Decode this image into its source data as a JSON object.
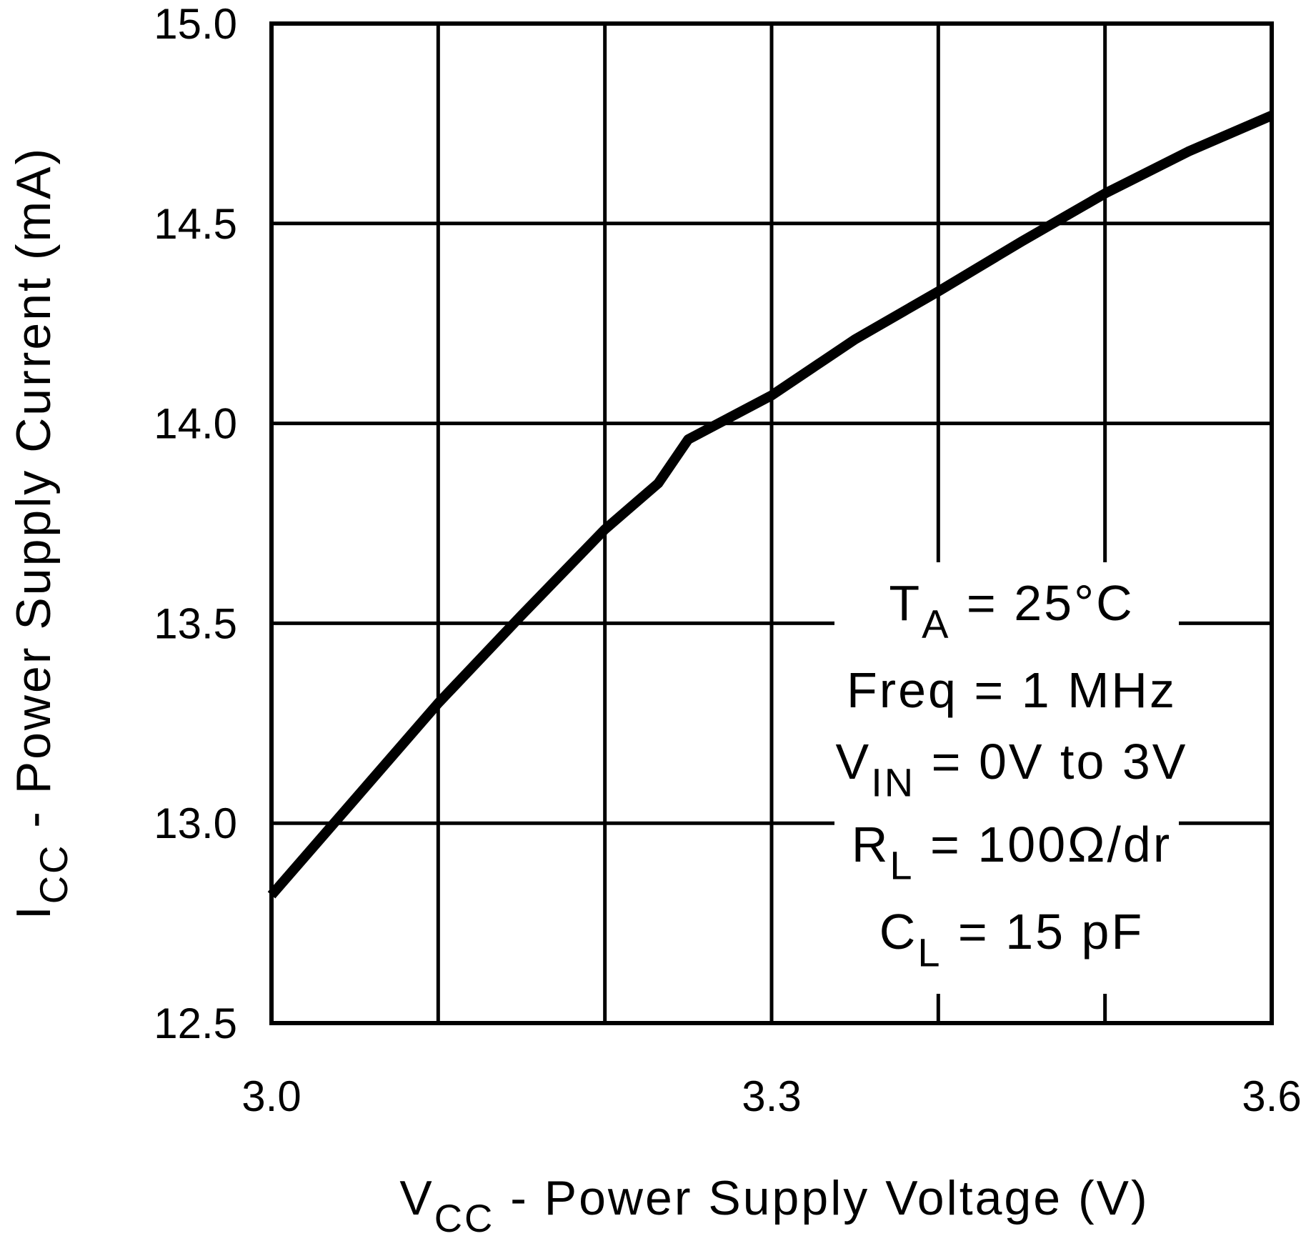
{
  "chart_data": {
    "type": "line",
    "x": [
      3.0,
      3.05,
      3.1,
      3.15,
      3.2,
      3.232,
      3.25,
      3.3,
      3.35,
      3.4,
      3.45,
      3.5,
      3.55,
      3.6
    ],
    "values": [
      12.82,
      13.06,
      13.3,
      13.52,
      13.735,
      13.85,
      13.96,
      14.07,
      14.21,
      14.33,
      14.455,
      14.575,
      14.68,
      14.77
    ],
    "color": "#000000",
    "xlim": [
      3.0,
      3.6
    ],
    "ylim": [
      12.5,
      15.0
    ],
    "xticks": [
      {
        "value": 3.0,
        "label": "3.0"
      },
      3.3,
      3.6
    ],
    "x_minor_ticks": [
      3.1,
      3.2,
      3.4,
      3.5
    ],
    "yticks": [
      12.5,
      {
        "value": 13,
        "label": "13.0"
      },
      13.5,
      {
        "value": 14,
        "label": "14.0"
      },
      14.5,
      {
        "value": 15,
        "label": "15.0"
      }
    ],
    "grid": true,
    "xlabel": {
      "main": "V",
      "sub": "CC",
      "rest": " - Power Supply Voltage (V)"
    },
    "ylabel": {
      "main": "I",
      "sub": "CC",
      "rest": " - Power Supply Current (mA)"
    },
    "annotations": [
      {
        "main": "T",
        "sub": "A",
        "rest": " = 25°C"
      },
      {
        "main": "Freq = 1 MHz"
      },
      {
        "main": "V",
        "sub": "IN",
        "rest": " = 0V to 3V"
      },
      {
        "main": "R",
        "sub": "L",
        "rest": " = 100Ω/dr"
      },
      {
        "main": "C",
        "sub": "L",
        "rest": " = 15 pF"
      }
    ]
  }
}
